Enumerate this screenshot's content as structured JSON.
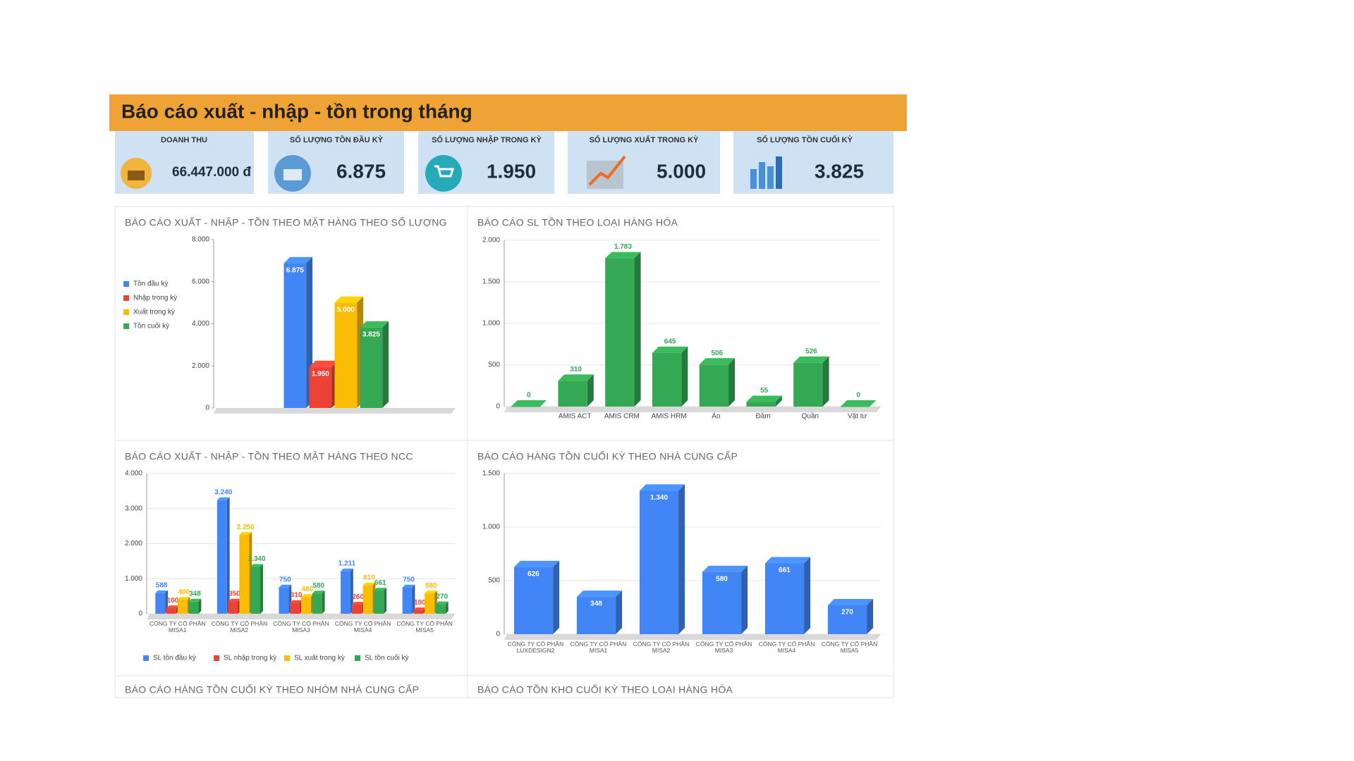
{
  "header": {
    "title": "Báo cáo xuất - nhập - tồn trong tháng"
  },
  "kpis": [
    {
      "label": "DOANH THU",
      "value": "66.447.000 đ"
    },
    {
      "label": "SỐ LƯỢNG TỒN ĐẦU KỲ",
      "value": "6.875"
    },
    {
      "label": "SỐ LƯỢNG NHẬP TRONG KỲ",
      "value": "1.950"
    },
    {
      "label": "SỐ LƯỢNG XUẤT TRONG KỲ",
      "value": "5.000"
    },
    {
      "label": "SỐ LƯỢNG TỒN CUỐI KỲ",
      "value": "3.825"
    }
  ],
  "chart_data": [
    {
      "type": "bar",
      "title": "BÁO CÁO XUẤT - NHẬP - TỒN THEO MẶT HÀNG THEO SỐ LƯỢNG",
      "categories": [
        null
      ],
      "series": [
        {
          "name": "Tồn đầu kỳ",
          "color": "#4285f4",
          "values": [
            6875
          ],
          "value_labels": [
            "6.875"
          ]
        },
        {
          "name": "Nhập trong kỳ",
          "color": "#ea4335",
          "values": [
            1950
          ],
          "value_labels": [
            "1.950"
          ]
        },
        {
          "name": "Xuất trong kỳ",
          "color": "#fbbc04",
          "values": [
            5000
          ],
          "value_labels": [
            "5.000"
          ]
        },
        {
          "name": "Tồn cuối kỳ",
          "color": "#34a853",
          "values": [
            3825
          ],
          "value_labels": [
            "3.825"
          ]
        }
      ],
      "ylim": [
        0,
        8000
      ],
      "yticks": [
        0,
        {
          "value": 2000,
          "label": "2.000"
        },
        {
          "value": 4000,
          "label": "4.000"
        },
        {
          "value": 6000,
          "label": "6.000"
        },
        {
          "value": 8000,
          "label": "8.000"
        }
      ],
      "legend": "left"
    },
    {
      "type": "bar",
      "title": "BÁO CÁO SL TỒN THEO LOẠI HÀNG HÓA",
      "categories": [
        null,
        "AMIS ACT",
        "AMIS CRM",
        "AMIS HRM",
        "Áo",
        "Đầm",
        "Quần",
        "Vật tư"
      ],
      "values": [
        0,
        310,
        1783,
        645,
        506,
        55,
        526,
        0
      ],
      "value_labels": [
        "0",
        "310",
        "1.783",
        "645",
        "506",
        "55",
        "526",
        "0"
      ],
      "color": "#34a853",
      "ylim": [
        0,
        2000
      ],
      "yticks": [
        0,
        500,
        {
          "value": 1000,
          "label": "1.000"
        },
        {
          "value": 1500,
          "label": "1.500"
        },
        {
          "value": 2000,
          "label": "2.000"
        }
      ],
      "grid": true
    },
    {
      "type": "bar",
      "title": "BÁO CÁO XUẤT - NHẬP - TỒN THEO MẶT HÀNG THEO NCC",
      "categories": [
        "CÔNG TY CỔ PHẦN MISA1",
        "CÔNG TY CỔ PHẦN MISA2",
        "CÔNG TY CỔ PHẦN MISA3",
        "CÔNG TY CỔ PHẦN MISA4",
        "CÔNG TY CỔ PHẦN MISA5"
      ],
      "series": [
        {
          "name": "SL tồn đầu kỳ",
          "color": "#4285f4",
          "values": [
            588,
            3240,
            750,
            1211,
            750
          ],
          "value_labels": [
            "588",
            "3.240",
            "750",
            "1.211",
            "750"
          ]
        },
        {
          "name": "SL nhập trong kỳ",
          "color": "#ea4335",
          "values": [
            160,
            350,
            310,
            260,
            100
          ],
          "value_labels": [
            "160",
            "350",
            "310",
            "260",
            "100"
          ]
        },
        {
          "name": "SL xuất trong kỳ",
          "color": "#fbbc04",
          "values": [
            400,
            2250,
            480,
            810,
            580
          ],
          "value_labels": [
            "400",
            "2.250",
            "480",
            "810",
            "580"
          ]
        },
        {
          "name": "SL tồn cuối kỳ",
          "color": "#34a853",
          "values": [
            348,
            1340,
            580,
            661,
            270
          ],
          "value_labels": [
            "348",
            "1.340",
            "580",
            "661",
            "270"
          ]
        }
      ],
      "ylim": [
        0,
        4000
      ],
      "yticks": [
        0,
        {
          "value": 1000,
          "label": "1.000"
        },
        {
          "value": 2000,
          "label": "2.000"
        },
        {
          "value": 3000,
          "label": "3.000"
        },
        {
          "value": 4000,
          "label": "4.000"
        }
      ],
      "grid": true,
      "legend": "bottom"
    },
    {
      "type": "bar",
      "title": "BÁO CÁO HÀNG TỒN CUỐI KỲ THEO NHÀ CUNG CẤP",
      "categories": [
        "CÔNG TY CỔ PHẦN LUXDesign2",
        "CÔNG TY CỔ PHẦN MISA1",
        "CÔNG TY CỔ PHẦN MISA2",
        "CÔNG TY CỔ PHẦN MISA3",
        "CÔNG TY CỔ PHẦN MISA4",
        "CÔNG TY CỔ PHẦN MISA5"
      ],
      "values": [
        626,
        348,
        1340,
        580,
        661,
        270
      ],
      "value_labels": [
        "626",
        "348",
        "1.340",
        "580",
        "661",
        "270"
      ],
      "color": "#4285f4",
      "ylim": [
        0,
        1500
      ],
      "yticks": [
        0,
        500,
        {
          "value": 1000,
          "label": "1.000"
        },
        {
          "value": 1500,
          "label": "1.500"
        }
      ],
      "grid": true
    }
  ],
  "more_sections": [
    "BÁO CÁO HÀNG TỒN CUỐI KỲ THEO NHÓM NHÀ CUNG CẤP",
    "BÁO CÁO TỒN KHO CUỐI KỲ THEO LOẠI HÀNG HÓA"
  ]
}
